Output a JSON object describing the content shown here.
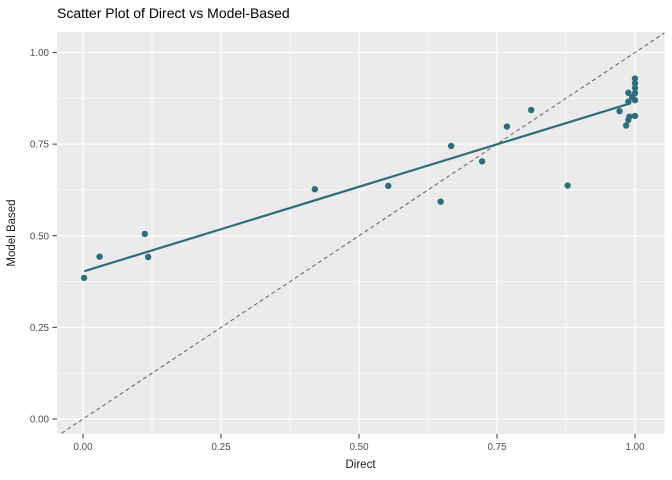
{
  "chart_data": {
    "type": "scatter",
    "title": "Scatter Plot of Direct vs Model-Based",
    "xlabel": "Direct",
    "ylabel": "Model Based",
    "xlim": [
      -0.05,
      1.05
    ],
    "ylim": [
      -0.05,
      1.06
    ],
    "grid": {
      "major": true,
      "minor": true
    },
    "legend": "none",
    "x_ticks": {
      "values": [
        0,
        0.25,
        0.5,
        0.75,
        1.0
      ],
      "labels": [
        "0.00",
        "0.25",
        "0.50",
        "0.75",
        "1.00"
      ],
      "minor_values": [
        0.125,
        0.375,
        0.625,
        0.875
      ]
    },
    "y_ticks": {
      "values": [
        0,
        0.25,
        0.5,
        0.75,
        1.0
      ],
      "labels": [
        "0.00",
        "0.25",
        "0.50",
        "0.75",
        "1.00"
      ],
      "minor_values": [
        0.125,
        0.375,
        0.625,
        0.875
      ]
    },
    "points": [
      [
        0.002,
        0.385
      ],
      [
        0.03,
        0.443
      ],
      [
        0.112,
        0.505
      ],
      [
        0.118,
        0.442
      ],
      [
        0.42,
        0.627
      ],
      [
        0.553,
        0.636
      ],
      [
        0.648,
        0.593
      ],
      [
        0.667,
        0.745
      ],
      [
        0.723,
        0.703
      ],
      [
        0.768,
        0.798
      ],
      [
        0.812,
        0.843
      ],
      [
        0.878,
        0.637
      ],
      [
        0.972,
        0.84
      ],
      [
        0.984,
        0.801
      ],
      [
        0.988,
        0.816
      ],
      [
        0.99,
        0.825
      ],
      [
        1.0,
        0.827
      ],
      [
        0.988,
        0.866
      ],
      [
        1.0,
        0.87
      ],
      [
        0.995,
        0.878
      ],
      [
        0.988,
        0.89
      ],
      [
        1.0,
        0.889
      ],
      [
        1.0,
        0.903
      ],
      [
        1.0,
        0.916
      ],
      [
        1.0,
        0.929
      ]
    ],
    "smooth_line": {
      "style": "solid",
      "x1": 0.004,
      "y1": 0.404,
      "x2": 0.991,
      "y2": 0.861
    },
    "identity_line": {
      "style": "dashed",
      "x1": -0.06,
      "y1": -0.06,
      "x2": 1.07,
      "y2": 1.07
    },
    "colors": {
      "point": "#2F6D7A",
      "smooth_line": "#2F6D7A",
      "identity_line": "#606060",
      "panel_background": "#EBEBEB",
      "gridline": "#FFFFFF",
      "tick_mark": "#333333",
      "tick_label": "#4D4D4D"
    }
  }
}
